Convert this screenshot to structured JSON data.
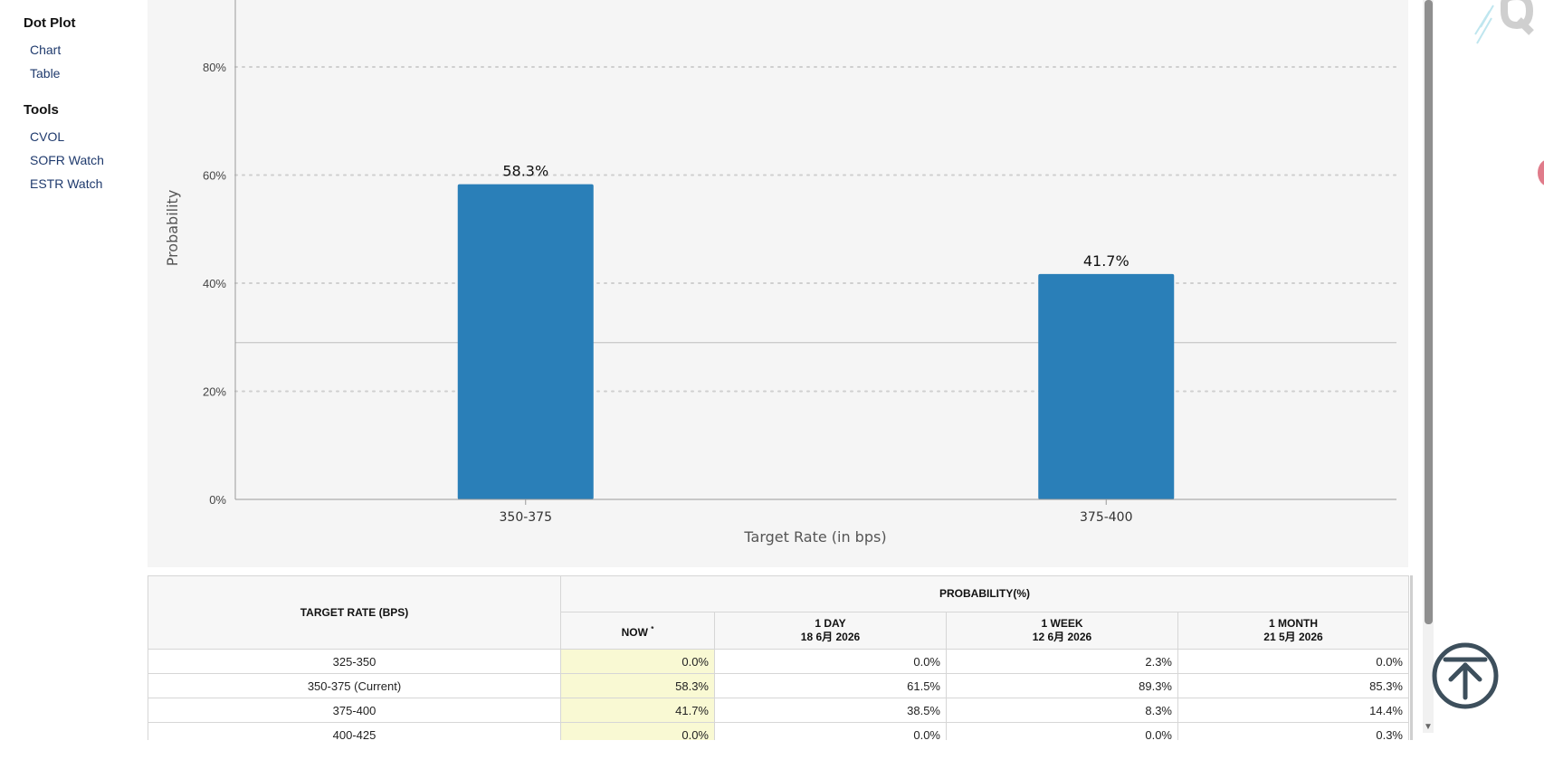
{
  "sidebar": {
    "sections": [
      {
        "heading": "Dot Plot",
        "items": [
          "Chart",
          "Table"
        ]
      },
      {
        "heading": "Tools",
        "items": [
          "CVOL",
          "SOFR Watch",
          "ESTR Watch"
        ]
      }
    ]
  },
  "chart_data": {
    "type": "bar",
    "categories": [
      "350-375",
      "375-400"
    ],
    "values": [
      58.3,
      41.7
    ],
    "data_labels": [
      "58.3%",
      "41.7%"
    ],
    "xlabel": "Target Rate (in bps)",
    "ylabel": "Probability",
    "ylim": [
      0,
      80
    ],
    "yticks": [
      "0%",
      "20%",
      "40%",
      "60%",
      "80%"
    ],
    "grid": true,
    "reference_line": 29,
    "bar_color": "#2a7fb8"
  },
  "table": {
    "col_header_rate": "TARGET RATE (BPS)",
    "group_header": "PROBABILITY(%)",
    "headers": [
      {
        "label": "NOW",
        "marker": "*"
      },
      {
        "label": "1 DAY",
        "date": "18 6月 2026"
      },
      {
        "label": "1 WEEK",
        "date": "12 6月 2026"
      },
      {
        "label": "1 MONTH",
        "date": "21 5月 2026"
      }
    ],
    "rows": [
      {
        "rate": "325-350",
        "values": [
          "0.0%",
          "0.0%",
          "2.3%",
          "0.0%"
        ]
      },
      {
        "rate": "350-375 (Current)",
        "values": [
          "58.3%",
          "61.5%",
          "89.3%",
          "85.3%"
        ]
      },
      {
        "rate": "375-400",
        "values": [
          "41.7%",
          "38.5%",
          "8.3%",
          "14.4%"
        ]
      },
      {
        "rate": "400-425",
        "values": [
          "0.0%",
          "0.0%",
          "0.0%",
          "0.3%"
        ]
      }
    ]
  },
  "colors": {
    "accent": "#2a7fb8",
    "now_column": "#f9f9d3",
    "panel": "#f5f5f5"
  },
  "icons": {
    "back_to_top": "arrow-up-circle-icon",
    "logo": "quikstrike-q-logo"
  }
}
